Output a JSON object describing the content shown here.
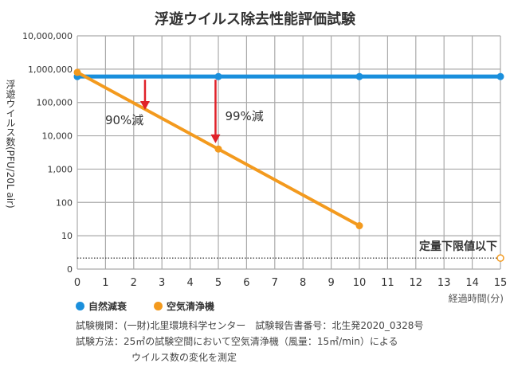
{
  "chart_data": {
    "type": "line",
    "title": "浮遊ウイルス除去性能評価試験",
    "ylabel": "浮遊ウイルス数(PFU/20L air)",
    "xlabel": "経過時間(分)",
    "x_ticks": [
      "0",
      "1",
      "2",
      "3",
      "4",
      "5",
      "6",
      "7",
      "8",
      "9",
      "10",
      "11",
      "12",
      "13",
      "14",
      "15"
    ],
    "y_ticks": [
      "10,000,000",
      "1,000,000",
      "100,000",
      "10,000",
      "1,000",
      "100",
      "10",
      "0"
    ],
    "xlim": [
      0,
      15
    ],
    "yscale": "log",
    "grid": true,
    "series": [
      {
        "name": "自然減衰",
        "color": "#1a8fdc",
        "x": [
          0,
          5,
          10,
          15
        ],
        "y": [
          600000,
          600000,
          600000,
          600000
        ]
      },
      {
        "name": "空気清浄機",
        "color": "#f39a1e",
        "x": [
          0,
          5,
          10
        ],
        "y": [
          800000,
          4000,
          20
        ]
      }
    ],
    "below_limit_point": {
      "series": "空気清浄機",
      "x": 15
    },
    "lower_limit_label": "定量下限値以下",
    "annotations": [
      {
        "text": "90%減",
        "x": 2.4,
        "from": 600000,
        "to": 60000
      },
      {
        "text": "99%減",
        "x": 4.9,
        "from": 600000,
        "to": 6000
      }
    ],
    "legend_position": "bottom-left"
  },
  "notes": [
    "試験機関：(一財)北里環境科学センター　試験報告書番号：北生発2020_0328号",
    "試験方法：25㎡の試験空間において空気清浄機（風量：15㎡/min）による",
    "ウイルス数の変化を測定"
  ]
}
